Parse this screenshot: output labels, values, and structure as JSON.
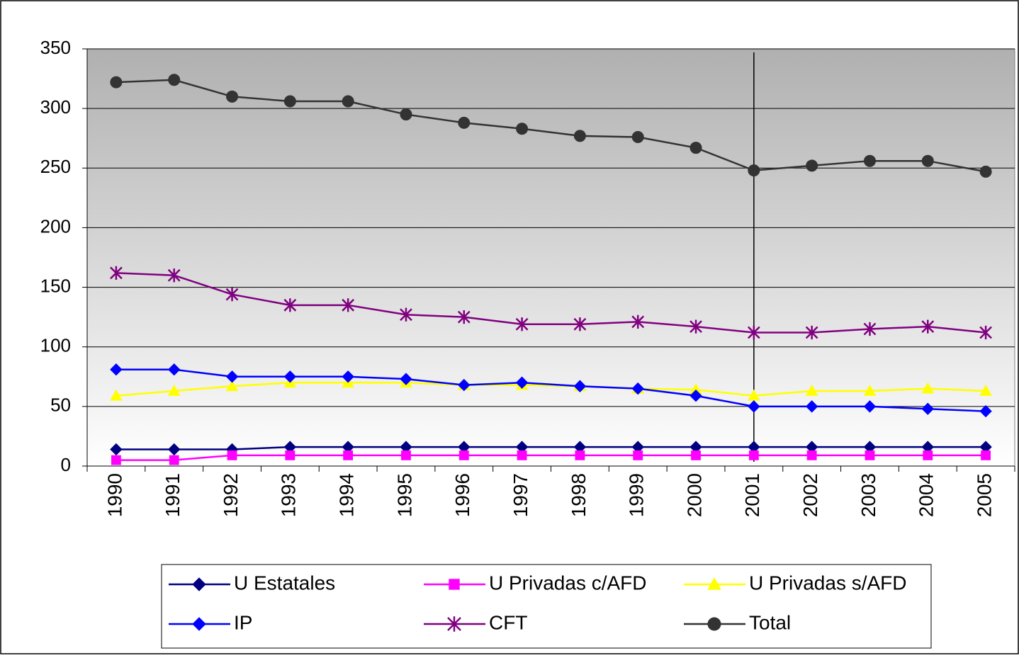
{
  "chart_data": {
    "type": "line",
    "categories": [
      "1990",
      "1991",
      "1992",
      "1993",
      "1994",
      "1995",
      "1996",
      "1997",
      "1998",
      "1999",
      "2000",
      "2001",
      "2002",
      "2003",
      "2004",
      "2005"
    ],
    "series": [
      {
        "name": "U Estatales",
        "color": "#000080",
        "marker": "diamond",
        "values": [
          14,
          14,
          14,
          16,
          16,
          16,
          16,
          16,
          16,
          16,
          16,
          16,
          16,
          16,
          16,
          16
        ]
      },
      {
        "name": "U Privadas c/AFD",
        "color": "#ff00ff",
        "marker": "square",
        "values": [
          5,
          5,
          9,
          9,
          9,
          9,
          9,
          9,
          9,
          9,
          9,
          9,
          9,
          9,
          9,
          9
        ]
      },
      {
        "name": "U Privadas s/AFD",
        "color": "#ffff00",
        "marker": "triangle",
        "values": [
          59,
          63,
          67,
          70,
          70,
          70,
          68,
          68,
          67,
          65,
          64,
          59,
          63,
          63,
          65,
          63
        ]
      },
      {
        "name": "IP",
        "color": "#0000ff",
        "marker": "diamond",
        "values": [
          81,
          81,
          75,
          75,
          75,
          73,
          68,
          70,
          67,
          65,
          59,
          50,
          50,
          50,
          48,
          46
        ]
      },
      {
        "name": "CFT",
        "color": "#800080",
        "marker": "star",
        "values": [
          162,
          160,
          144,
          135,
          135,
          127,
          125,
          119,
          119,
          121,
          117,
          112,
          112,
          115,
          117,
          112
        ]
      },
      {
        "name": "Total",
        "color": "#333333",
        "marker": "circle",
        "values": [
          322,
          324,
          310,
          306,
          306,
          295,
          288,
          283,
          277,
          276,
          267,
          248,
          252,
          256,
          256,
          247
        ]
      }
    ],
    "ylim": [
      0,
      350
    ],
    "yticks": [
      0,
      50,
      100,
      150,
      200,
      250,
      300,
      350
    ],
    "grid": true,
    "reference_line_x": "2001"
  }
}
